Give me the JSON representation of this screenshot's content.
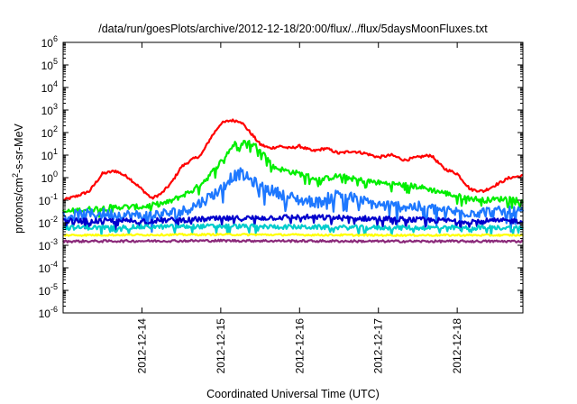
{
  "chart_data": {
    "type": "line",
    "title": "/data/run/goesPlots/archive/2012-12-18/20:00/flux/../flux/5daysMoonFluxes.txt",
    "xlabel": "Coordinated Universal Time (UTC)",
    "ylabel": {
      "prefix": "protons/cm",
      "sup": "2",
      "suffix": "-s-sr-MeV"
    },
    "yscale": "log",
    "ylim": [
      1e-06,
      1000000.0
    ],
    "xlim": [
      "2012-12-13T00:00",
      "2012-12-18T20:00"
    ],
    "grid": false,
    "legend": "none",
    "y_ticks": [
      {
        "value": 1e-06,
        "base": "10",
        "exp": "-6"
      },
      {
        "value": 1e-05,
        "base": "10",
        "exp": "-5"
      },
      {
        "value": 0.0001,
        "base": "10",
        "exp": "-4"
      },
      {
        "value": 0.001,
        "base": "10",
        "exp": "-3"
      },
      {
        "value": 0.01,
        "base": "10",
        "exp": "-2"
      },
      {
        "value": 0.1,
        "base": "10",
        "exp": "-1"
      },
      {
        "value": 1,
        "base": "10",
        "exp": "0"
      },
      {
        "value": 10.0,
        "base": "10",
        "exp": "1"
      },
      {
        "value": 100.0,
        "base": "10",
        "exp": "2"
      },
      {
        "value": 1000.0,
        "base": "10",
        "exp": "3"
      },
      {
        "value": 10000.0,
        "base": "10",
        "exp": "4"
      },
      {
        "value": 100000.0,
        "base": "10",
        "exp": "5"
      },
      {
        "value": 1000000.0,
        "base": "10",
        "exp": "6"
      }
    ],
    "x_ticks": [
      {
        "value": "2012-12-14T00:00",
        "label": "2012-12-14"
      },
      {
        "value": "2012-12-15T00:00",
        "label": "2012-12-15"
      },
      {
        "value": "2012-12-16T00:00",
        "label": "2012-12-16"
      },
      {
        "value": "2012-12-17T00:00",
        "label": "2012-12-17"
      },
      {
        "value": "2012-12-18T00:00",
        "label": "2012-12-18"
      }
    ],
    "series": [
      {
        "color": "#ff0000",
        "noise": 0.06,
        "points": [
          [
            "2012-12-13T00:00",
            0.1
          ],
          [
            "2012-12-13T04:00",
            0.15
          ],
          [
            "2012-12-13T08:00",
            0.25
          ],
          [
            "2012-12-13T12:00",
            1.5
          ],
          [
            "2012-12-13T16:00",
            2.0
          ],
          [
            "2012-12-13T20:00",
            1.0
          ],
          [
            "2012-12-14T00:00",
            0.3
          ],
          [
            "2012-12-14T03:00",
            0.12
          ],
          [
            "2012-12-14T06:00",
            0.2
          ],
          [
            "2012-12-14T09:00",
            0.6
          ],
          [
            "2012-12-14T12:00",
            3.0
          ],
          [
            "2012-12-14T15:00",
            6.0
          ],
          [
            "2012-12-14T18:00",
            10.0
          ],
          [
            "2012-12-14T21:00",
            60.0
          ],
          [
            "2012-12-15T00:00",
            250.0
          ],
          [
            "2012-12-15T03:00",
            350.0
          ],
          [
            "2012-12-15T06:00",
            320.0
          ],
          [
            "2012-12-15T09:00",
            100.0
          ],
          [
            "2012-12-15T12:00",
            30.0
          ],
          [
            "2012-12-15T15:00",
            20.0
          ],
          [
            "2012-12-15T18:00",
            25.0
          ],
          [
            "2012-12-15T21:00",
            20.0
          ],
          [
            "2012-12-16T00:00",
            25.0
          ],
          [
            "2012-12-16T04:00",
            15.0
          ],
          [
            "2012-12-16T08:00",
            20.0
          ],
          [
            "2012-12-16T12:00",
            12.0
          ],
          [
            "2012-12-16T16:00",
            15.0
          ],
          [
            "2012-12-16T20:00",
            12.0
          ],
          [
            "2012-12-17T00:00",
            8.0
          ],
          [
            "2012-12-17T04:00",
            10.0
          ],
          [
            "2012-12-17T08:00",
            6.0
          ],
          [
            "2012-12-17T12:00",
            8.0
          ],
          [
            "2012-12-17T16:00",
            10.0
          ],
          [
            "2012-12-17T20:00",
            2.5
          ],
          [
            "2012-12-18T00:00",
            1.5
          ],
          [
            "2012-12-18T04:00",
            0.3
          ],
          [
            "2012-12-18T08:00",
            0.25
          ],
          [
            "2012-12-18T12:00",
            0.5
          ],
          [
            "2012-12-18T16:00",
            1.0
          ],
          [
            "2012-12-18T20:00",
            1.2
          ]
        ]
      },
      {
        "color": "#00ee00",
        "noise": 0.12,
        "points": [
          [
            "2012-12-13T00:00",
            0.03
          ],
          [
            "2012-12-13T08:00",
            0.04
          ],
          [
            "2012-12-13T16:00",
            0.05
          ],
          [
            "2012-12-14T00:00",
            0.05
          ],
          [
            "2012-12-14T08:00",
            0.08
          ],
          [
            "2012-12-14T16:00",
            0.3
          ],
          [
            "2012-12-14T20:00",
            1.0
          ],
          [
            "2012-12-15T00:00",
            5.0
          ],
          [
            "2012-12-15T04:00",
            30.0
          ],
          [
            "2012-12-15T08:00",
            40.0
          ],
          [
            "2012-12-15T12:00",
            20.0
          ],
          [
            "2012-12-15T16:00",
            3.0
          ],
          [
            "2012-12-15T20:00",
            2.0
          ],
          [
            "2012-12-16T00:00",
            1.5
          ],
          [
            "2012-12-16T06:00",
            0.8
          ],
          [
            "2012-12-16T12:00",
            1.2
          ],
          [
            "2012-12-16T18:00",
            0.8
          ],
          [
            "2012-12-17T00:00",
            0.6
          ],
          [
            "2012-12-17T06:00",
            0.5
          ],
          [
            "2012-12-17T12:00",
            0.4
          ],
          [
            "2012-12-17T18:00",
            0.25
          ],
          [
            "2012-12-18T00:00",
            0.15
          ],
          [
            "2012-12-18T08:00",
            0.1
          ],
          [
            "2012-12-18T16:00",
            0.12
          ],
          [
            "2012-12-18T20:00",
            0.1
          ]
        ]
      },
      {
        "color": "#1e78ff",
        "noise": 0.25,
        "points": [
          [
            "2012-12-13T00:00",
            0.02
          ],
          [
            "2012-12-13T12:00",
            0.025
          ],
          [
            "2012-12-14T00:00",
            0.02
          ],
          [
            "2012-12-14T12:00",
            0.03
          ],
          [
            "2012-12-14T18:00",
            0.08
          ],
          [
            "2012-12-15T00:00",
            0.3
          ],
          [
            "2012-12-15T03:00",
            1.0
          ],
          [
            "2012-12-15T06:00",
            1.5
          ],
          [
            "2012-12-15T09:00",
            0.8
          ],
          [
            "2012-12-15T12:00",
            0.4
          ],
          [
            "2012-12-15T18:00",
            0.2
          ],
          [
            "2012-12-16T00:00",
            0.1
          ],
          [
            "2012-12-16T06:00",
            0.08
          ],
          [
            "2012-12-16T12:00",
            0.2
          ],
          [
            "2012-12-16T18:00",
            0.1
          ],
          [
            "2012-12-17T00:00",
            0.06
          ],
          [
            "2012-12-17T12:00",
            0.05
          ],
          [
            "2012-12-18T00:00",
            0.03
          ],
          [
            "2012-12-18T12:00",
            0.03
          ],
          [
            "2012-12-18T20:00",
            0.03
          ]
        ]
      },
      {
        "color": "#0000cc",
        "noise": 0.12,
        "points": [
          [
            "2012-12-13T00:00",
            0.012
          ],
          [
            "2012-12-14T00:00",
            0.012
          ],
          [
            "2012-12-15T00:00",
            0.015
          ],
          [
            "2012-12-16T00:00",
            0.018
          ],
          [
            "2012-12-17T00:00",
            0.015
          ],
          [
            "2012-12-18T00:00",
            0.012
          ],
          [
            "2012-12-18T20:00",
            0.012
          ]
        ]
      },
      {
        "color": "#00cccc",
        "noise": 0.1,
        "points": [
          [
            "2012-12-13T00:00",
            0.006
          ],
          [
            "2012-12-15T00:00",
            0.007
          ],
          [
            "2012-12-17T00:00",
            0.006
          ],
          [
            "2012-12-18T20:00",
            0.006
          ]
        ]
      },
      {
        "color": "#ffff00",
        "noise": 0.04,
        "points": [
          [
            "2012-12-13T00:00",
            0.0028
          ],
          [
            "2012-12-15T00:00",
            0.003
          ],
          [
            "2012-12-17T00:00",
            0.0028
          ],
          [
            "2012-12-18T20:00",
            0.0028
          ]
        ]
      },
      {
        "color": "#8b2a7a",
        "noise": 0.05,
        "points": [
          [
            "2012-12-13T00:00",
            0.0015
          ],
          [
            "2012-12-15T00:00",
            0.0016
          ],
          [
            "2012-12-17T00:00",
            0.0015
          ],
          [
            "2012-12-18T20:00",
            0.0015
          ]
        ]
      }
    ]
  }
}
